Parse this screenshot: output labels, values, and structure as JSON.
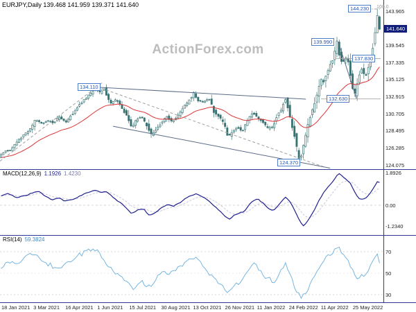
{
  "header": {
    "title": "EURJPY,Daily 139.468 141.959 139.371 141.640"
  },
  "watermark": "ActionForex.com",
  "colors": {
    "candle": "#3a7373",
    "ma": "#dd3333",
    "macd_main": "#1f1f8f",
    "macd_signal": "#c8c8de",
    "rsi": "#76b6e0",
    "separator": "#2f3699",
    "grid": "#c9c9c9",
    "trend_solid": "#5a6b85",
    "trend_dashed": "#9e9e9e",
    "hline": "#a6a6a6",
    "flag_border": "#4d7cc9",
    "flag_text": "#2456b0",
    "price_box_bg": "#111f7a"
  },
  "chart_data": {
    "type": "candlestick",
    "symbol": "EURJPY",
    "timeframe": "Daily",
    "ohlc": {
      "open": 139.468,
      "high": 141.959,
      "low": 139.371,
      "close": 141.64
    },
    "x_labels": [
      "18 Jan 2021",
      "3 Mar 2021",
      "16 Apr 2021",
      "1 Jun 2021",
      "15 Jul 2021",
      "30 Aug 2021",
      "13 Oct 2021",
      "26 Nov 2021",
      "11 Jan 2022",
      "24 Feb 2022",
      "11 Apr 2022",
      "25 May 2022"
    ],
    "price_axis": {
      "current": "141.640",
      "ticks": [
        {
          "p": 143.965,
          "t": "143.965"
        },
        {
          "p": 139.545,
          "t": "139.545"
        },
        {
          "p": 137.335,
          "t": "137.335"
        },
        {
          "p": 135.125,
          "t": "135.125"
        },
        {
          "p": 132.915,
          "t": "132.915"
        },
        {
          "p": 130.705,
          "t": "130.705"
        },
        {
          "p": 128.495,
          "t": "128.495"
        },
        {
          "p": 126.285,
          "t": "126.285"
        },
        {
          "p": 124.075,
          "t": "124.075"
        }
      ]
    },
    "price_path_day_price": [
      [
        0,
        125.2
      ],
      [
        6,
        125.9
      ],
      [
        12,
        126.1
      ],
      [
        18,
        127.2
      ],
      [
        25,
        128.0
      ],
      [
        31,
        128.7
      ],
      [
        36,
        130.0
      ],
      [
        42,
        129.4
      ],
      [
        48,
        129.9
      ],
      [
        54,
        129.5
      ],
      [
        60,
        130.4
      ],
      [
        66,
        129.6
      ],
      [
        72,
        130.6
      ],
      [
        78,
        131.6
      ],
      [
        84,
        132.5
      ],
      [
        90,
        133.2
      ],
      [
        96,
        134.0
      ],
      [
        100,
        133.4
      ],
      [
        104,
        133.9
      ],
      [
        110,
        131.9
      ],
      [
        115,
        132.6
      ],
      [
        120,
        131.9
      ],
      [
        126,
        130.6
      ],
      [
        131,
        128.9
      ],
      [
        136,
        129.9
      ],
      [
        141,
        130.3
      ],
      [
        146,
        129.3
      ],
      [
        151,
        127.9
      ],
      [
        156,
        128.8
      ],
      [
        161,
        129.6
      ],
      [
        166,
        130.4
      ],
      [
        171,
        129.7
      ],
      [
        177,
        130.4
      ],
      [
        183,
        131.5
      ],
      [
        189,
        132.6
      ],
      [
        193,
        133.4
      ],
      [
        198,
        132.4
      ],
      [
        203,
        132.2
      ],
      [
        208,
        132.7
      ],
      [
        213,
        131.0
      ],
      [
        218,
        130.3
      ],
      [
        223,
        129.4
      ],
      [
        227,
        127.7
      ],
      [
        231,
        128.5
      ],
      [
        236,
        129.0
      ],
      [
        241,
        128.4
      ],
      [
        246,
        129.8
      ],
      [
        251,
        130.9
      ],
      [
        256,
        130.2
      ],
      [
        261,
        129.7
      ],
      [
        266,
        128.8
      ],
      [
        271,
        129.1
      ],
      [
        276,
        130.6
      ],
      [
        280,
        131.3
      ],
      [
        283,
        133.0
      ],
      [
        287,
        131.1
      ],
      [
        291,
        128.9
      ],
      [
        295,
        126.3
      ],
      [
        298,
        124.5
      ],
      [
        301,
        126.4
      ],
      [
        304,
        128.0
      ],
      [
        308,
        130.2
      ],
      [
        312,
        131.9
      ],
      [
        316,
        133.9
      ],
      [
        319,
        135.2
      ],
      [
        321,
        134.4
      ],
      [
        324,
        135.9
      ],
      [
        328,
        136.9
      ],
      [
        331,
        138.0
      ],
      [
        335,
        139.9
      ],
      [
        338,
        137.9
      ],
      [
        341,
        137.2
      ],
      [
        343,
        138.3
      ],
      [
        346,
        137.4
      ],
      [
        349,
        135.3
      ],
      [
        352,
        132.9
      ],
      [
        354,
        134.4
      ],
      [
        357,
        135.6
      ],
      [
        359,
        136.7
      ],
      [
        361,
        135.9
      ],
      [
        363,
        135.1
      ],
      [
        365,
        136.5
      ],
      [
        367,
        137.3
      ],
      [
        369,
        138.6
      ],
      [
        371,
        139.8
      ],
      [
        373,
        141.5
      ],
      [
        375,
        143.9
      ],
      [
        376,
        143.2
      ],
      [
        377,
        141.6
      ]
    ],
    "annotations": {
      "price_labels": [
        {
          "text": "134.110",
          "x": 112,
          "y": 120
        },
        {
          "text": "144.230",
          "x": 502,
          "y": 7
        },
        {
          "text": "139.990",
          "x": 449,
          "y": 55
        },
        {
          "text": "137.830",
          "x": 508,
          "y": 79
        },
        {
          "text": "132.630",
          "x": 471,
          "y": 137
        },
        {
          "text": "124.370",
          "x": 400,
          "y": 229
        }
      ],
      "fib_label": {
        "text": "100.0",
        "x": 543,
        "y": 7
      },
      "trendlines": [
        {
          "d1": 0,
          "p1": 124.6,
          "d2": 101,
          "p2": 134.7,
          "dash": true
        },
        {
          "d1": 96,
          "p1": 134.2,
          "d2": 322,
          "p2": 123.8,
          "dash": true
        },
        {
          "d1": 96,
          "p1": 134.15,
          "d2": 303,
          "p2": 132.6,
          "dash": false
        },
        {
          "d1": 112,
          "p1": 129.1,
          "d2": 327,
          "p2": 123.7,
          "dash": false
        },
        {
          "d1": 335,
          "p1": 140.0,
          "d2": 353,
          "p2": 132.7,
          "dash": false
        }
      ],
      "hlines": [
        {
          "p": 144.23,
          "d1": 349,
          "d2": 377,
          "dashdot": true
        },
        {
          "p": 137.83,
          "d1": 332,
          "d2": 377,
          "dashdot": false
        },
        {
          "p": 132.63,
          "d1": 318,
          "d2": 377,
          "dashdot": false
        }
      ]
    },
    "macd": {
      "label": "MACD(12,26,9)",
      "value_main": "1.1926",
      "value_signal": "1.4230",
      "ticks": [
        {
          "v": 1.8926,
          "t": "1.8926"
        },
        {
          "v": 0,
          "t": "0.00"
        },
        {
          "v": -1.234,
          "t": "-1.2340"
        }
      ],
      "series": [
        [
          0,
          0.5
        ],
        [
          8,
          0.7
        ],
        [
          16,
          0.45
        ],
        [
          24,
          0.55
        ],
        [
          32,
          0.72
        ],
        [
          38,
          0.85
        ],
        [
          44,
          0.55
        ],
        [
          52,
          0.3
        ],
        [
          58,
          0.45
        ],
        [
          64,
          0.25
        ],
        [
          70,
          0.3
        ],
        [
          78,
          0.5
        ],
        [
          86,
          0.75
        ],
        [
          94,
          0.9
        ],
        [
          100,
          0.75
        ],
        [
          106,
          0.8
        ],
        [
          112,
          0.45
        ],
        [
          118,
          0.2
        ],
        [
          124,
          -0.1
        ],
        [
          130,
          -0.5
        ],
        [
          136,
          -0.3
        ],
        [
          142,
          -0.2
        ],
        [
          148,
          -0.6
        ],
        [
          154,
          -0.45
        ],
        [
          160,
          -0.15
        ],
        [
          166,
          0.05
        ],
        [
          172,
          -0.05
        ],
        [
          178,
          0.15
        ],
        [
          184,
          0.4
        ],
        [
          190,
          0.6
        ],
        [
          195,
          0.7
        ],
        [
          200,
          0.5
        ],
        [
          206,
          0.3
        ],
        [
          212,
          -0.05
        ],
        [
          218,
          -0.35
        ],
        [
          223,
          -0.65
        ],
        [
          227,
          -0.85
        ],
        [
          232,
          -0.6
        ],
        [
          237,
          -0.45
        ],
        [
          242,
          -0.4
        ],
        [
          247,
          0.05
        ],
        [
          251,
          0.3
        ],
        [
          256,
          0.35
        ],
        [
          261,
          0.1
        ],
        [
          266,
          -0.2
        ],
        [
          271,
          -0.3
        ],
        [
          276,
          0.0
        ],
        [
          280,
          0.3
        ],
        [
          283,
          0.5
        ],
        [
          287,
          0.25
        ],
        [
          291,
          -0.2
        ],
        [
          295,
          -0.7
        ],
        [
          298,
          -1.05
        ],
        [
          301,
          -1.234
        ],
        [
          304,
          -1.0
        ],
        [
          308,
          -0.6
        ],
        [
          312,
          -0.2
        ],
        [
          316,
          0.3
        ],
        [
          320,
          0.7
        ],
        [
          324,
          1.0
        ],
        [
          328,
          1.3
        ],
        [
          332,
          1.6
        ],
        [
          335,
          1.8926
        ],
        [
          338,
          1.8
        ],
        [
          341,
          1.6
        ],
        [
          344,
          1.5
        ],
        [
          347,
          1.3
        ],
        [
          350,
          0.95
        ],
        [
          353,
          0.6
        ],
        [
          356,
          0.4
        ],
        [
          359,
          0.35
        ],
        [
          362,
          0.42
        ],
        [
          365,
          0.6
        ],
        [
          368,
          0.85
        ],
        [
          371,
          1.1
        ],
        [
          373,
          1.35
        ],
        [
          375,
          1.5
        ],
        [
          376,
          1.32
        ],
        [
          377,
          1.19
        ]
      ]
    },
    "rsi": {
      "label": "RSI(14)",
      "value": "59.3824",
      "ticks": [
        {
          "v": 70,
          "t": "70"
        },
        {
          "v": 50,
          "t": "50"
        },
        {
          "v": 30,
          "t": "30"
        }
      ],
      "series": [
        [
          0,
          55
        ],
        [
          8,
          62
        ],
        [
          15,
          58
        ],
        [
          25,
          65
        ],
        [
          35,
          68
        ],
        [
          45,
          60
        ],
        [
          55,
          55
        ],
        [
          65,
          58
        ],
        [
          75,
          65
        ],
        [
          85,
          70
        ],
        [
          95,
          72
        ],
        [
          105,
          60
        ],
        [
          115,
          50
        ],
        [
          125,
          42
        ],
        [
          132,
          35
        ],
        [
          140,
          42
        ],
        [
          148,
          38
        ],
        [
          155,
          45
        ],
        [
          162,
          52
        ],
        [
          170,
          50
        ],
        [
          178,
          55
        ],
        [
          185,
          62
        ],
        [
          193,
          65
        ],
        [
          200,
          58
        ],
        [
          207,
          50
        ],
        [
          213,
          45
        ],
        [
          220,
          38
        ],
        [
          227,
          32
        ],
        [
          233,
          40
        ],
        [
          240,
          42
        ],
        [
          247,
          55
        ],
        [
          252,
          58
        ],
        [
          258,
          52
        ],
        [
          265,
          45
        ],
        [
          272,
          42
        ],
        [
          278,
          52
        ],
        [
          283,
          58
        ],
        [
          288,
          48
        ],
        [
          293,
          35
        ],
        [
          298,
          28
        ],
        [
          302,
          30
        ],
        [
          306,
          38
        ],
        [
          312,
          48
        ],
        [
          318,
          58
        ],
        [
          324,
          65
        ],
        [
          330,
          70
        ],
        [
          335,
          74
        ],
        [
          340,
          68
        ],
        [
          345,
          62
        ],
        [
          350,
          52
        ],
        [
          354,
          45
        ],
        [
          358,
          50
        ],
        [
          362,
          48
        ],
        [
          366,
          55
        ],
        [
          370,
          62
        ],
        [
          374,
          70
        ],
        [
          376,
          63
        ],
        [
          377,
          59.38
        ]
      ]
    }
  }
}
